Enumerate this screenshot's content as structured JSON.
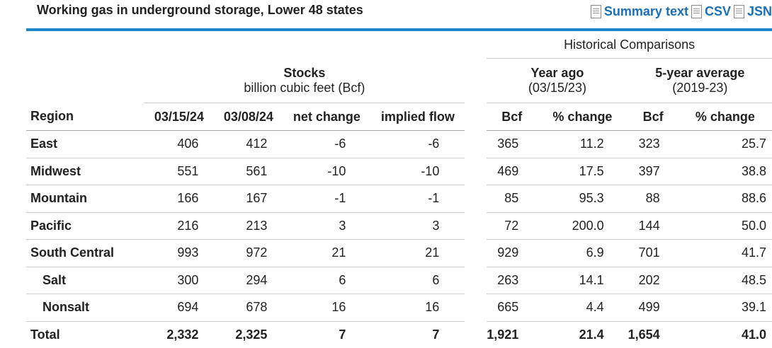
{
  "header": {
    "title": "Working gas in underground storage, Lower 48 states",
    "links": [
      {
        "label": "Summary text",
        "icon": "document-icon"
      },
      {
        "label": "CSV",
        "icon": "document-icon"
      },
      {
        "label": "JSN",
        "icon": "document-icon"
      }
    ]
  },
  "colors": {
    "accent_rule": "#1b87c9",
    "link": "#1a6fb5"
  },
  "table": {
    "historical_label": "Historical Comparisons",
    "stocks_title": "Stocks",
    "stocks_unit": "billion cubic feet (Bcf)",
    "year_ago_title": "Year ago",
    "year_ago_date": "(03/15/23)",
    "five_year_title": "5-year average",
    "five_year_range": "(2019-23)",
    "columns": [
      "Region",
      "03/15/24",
      "03/08/24",
      "net change",
      "implied flow",
      "Bcf",
      "% change",
      "Bcf",
      "% change"
    ],
    "rows": [
      {
        "region": "East",
        "sub": false,
        "cells": [
          "406",
          "412",
          "-6",
          "-6",
          "365",
          "11.2",
          "323",
          "25.7"
        ]
      },
      {
        "region": "Midwest",
        "sub": false,
        "cells": [
          "551",
          "561",
          "-10",
          "-10",
          "469",
          "17.5",
          "397",
          "38.8"
        ]
      },
      {
        "region": "Mountain",
        "sub": false,
        "cells": [
          "166",
          "167",
          "-1",
          "-1",
          "85",
          "95.3",
          "88",
          "88.6"
        ]
      },
      {
        "region": "Pacific",
        "sub": false,
        "cells": [
          "216",
          "213",
          "3",
          "3",
          "72",
          "200.0",
          "144",
          "50.0"
        ]
      },
      {
        "region": "South Central",
        "sub": false,
        "cells": [
          "993",
          "972",
          "21",
          "21",
          "929",
          "6.9",
          "701",
          "41.7"
        ]
      },
      {
        "region": "Salt",
        "sub": true,
        "cells": [
          "300",
          "294",
          "6",
          "6",
          "263",
          "14.1",
          "202",
          "48.5"
        ]
      },
      {
        "region": "Nonsalt",
        "sub": true,
        "cells": [
          "694",
          "678",
          "16",
          "16",
          "665",
          "4.4",
          "499",
          "39.1"
        ]
      },
      {
        "region": "Total",
        "sub": false,
        "total": true,
        "cells": [
          "2,332",
          "2,325",
          "7",
          "7",
          "1,921",
          "21.4",
          "1,654",
          "41.0"
        ]
      }
    ]
  }
}
